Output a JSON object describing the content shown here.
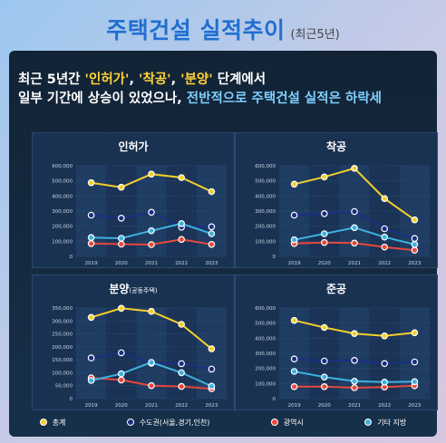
{
  "header": {
    "title": "주택건설 실적추이",
    "subtitle": "(최근5년)"
  },
  "lead": {
    "part1": "최근 5년간 ",
    "q1": "'인허가'",
    "sep1": ", ",
    "q2": "'착공'",
    "sep2": ", ",
    "q3": "'분양'",
    "part2": " 단계에서",
    "line2a": "일부 기간에 상승이 있었으나, ",
    "line2b": "전반적으로 주택건설 실적은 하락세"
  },
  "colors": {
    "total": "#f4cf2a",
    "metro": "#1c2f84",
    "metro_city": "#e8493a",
    "other": "#3eb2e0"
  },
  "legend": [
    {
      "label": "총계",
      "color": "#f4cf2a"
    },
    {
      "label": "수도권(서울,경기,인천)",
      "color": "#1c2f84"
    },
    {
      "label": "광역시",
      "color": "#e8493a"
    },
    {
      "label": "기타 지방",
      "color": "#3eb2e0"
    }
  ],
  "chart_data": [
    {
      "type": "line",
      "title": "인허가",
      "title_sub": "",
      "x": [
        "2019",
        "2020",
        "2021",
        "2022",
        "2023"
      ],
      "ylim": [
        0,
        600000
      ],
      "yticks": [
        "0",
        "100,000",
        "200,000",
        "300,000",
        "400,000",
        "500,000",
        "600,000"
      ],
      "series": [
        {
          "name": "총계",
          "values": [
            488000,
            458000,
            545000,
            522000,
            429000
          ]
        },
        {
          "name": "수도권(서울,경기,인천)",
          "values": [
            273000,
            253000,
            292000,
            193000,
            196000
          ]
        },
        {
          "name": "광역시",
          "values": [
            85000,
            81000,
            78000,
            112000,
            79000
          ]
        },
        {
          "name": "기타 지방",
          "values": [
            125000,
            120000,
            170000,
            217000,
            150000
          ]
        }
      ]
    },
    {
      "type": "line",
      "title": "착공",
      "title_sub": "",
      "x": [
        "2019",
        "2020",
        "2021",
        "2022",
        "2023"
      ],
      "ylim": [
        0,
        600000
      ],
      "yticks": [
        "0",
        "100,000",
        "200,000",
        "300,000",
        "400,000",
        "500,000",
        "600,000"
      ],
      "series": [
        {
          "name": "총계",
          "values": [
            478000,
            526000,
            583000,
            383000,
            242000
          ]
        },
        {
          "name": "수도권(서울,경기,인천)",
          "values": [
            273000,
            283000,
            297000,
            183000,
            119000
          ]
        },
        {
          "name": "광역시",
          "values": [
            85000,
            92000,
            88000,
            62000,
            41000
          ]
        },
        {
          "name": "기타 지방",
          "values": [
            110000,
            150000,
            190000,
            128000,
            79000
          ]
        }
      ]
    },
    {
      "type": "line",
      "title": "분양",
      "title_sub": "(공동주택)",
      "x": [
        "2019",
        "2020",
        "2021",
        "2022",
        "2023"
      ],
      "ylim": [
        0,
        350000
      ],
      "yticks": [
        "0",
        "50,000",
        "100,000",
        "150,000",
        "200,000",
        "250,000",
        "300,000",
        "350,000"
      ],
      "series": [
        {
          "name": "총계",
          "values": [
            314000,
            349000,
            337000,
            287000,
            192000
          ]
        },
        {
          "name": "수도권(서울,경기,인천)",
          "values": [
            157000,
            177000,
            137000,
            135000,
            114000
          ]
        },
        {
          "name": "광역시",
          "values": [
            80000,
            72000,
            50000,
            47000,
            38000
          ]
        },
        {
          "name": "기타 지방",
          "values": [
            70000,
            96000,
            140000,
            100000,
            48000
          ]
        }
      ]
    },
    {
      "type": "line",
      "title": "준공",
      "title_sub": "",
      "x": [
        "2019",
        "2020",
        "2021",
        "2022",
        "2023"
      ],
      "ylim": [
        0,
        600000
      ],
      "yticks": [
        "0",
        "100,000",
        "200,000",
        "300,000",
        "400,000",
        "500,000",
        "600,000"
      ],
      "series": [
        {
          "name": "총계",
          "values": [
            518000,
            471000,
            431000,
            415000,
            436000
          ]
        },
        {
          "name": "수도권(서울,경기,인천)",
          "values": [
            263000,
            249000,
            253000,
            232000,
            243000
          ]
        },
        {
          "name": "광역시",
          "values": [
            79000,
            79000,
            72000,
            77000,
            85000
          ]
        },
        {
          "name": "기타 지방",
          "values": [
            180000,
            143000,
            115000,
            109000,
            112000
          ]
        }
      ]
    }
  ]
}
